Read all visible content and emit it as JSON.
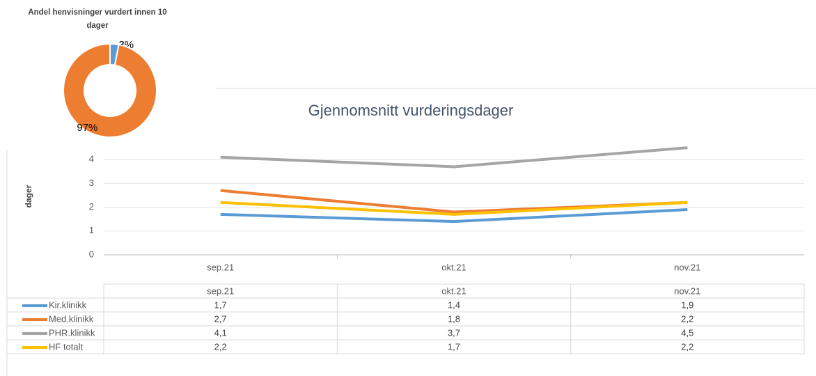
{
  "chart_data": [
    {
      "type": "pie",
      "title_lines": [
        "Andel henvisninger vurdert innen 10",
        "dager"
      ],
      "categories": [
        null,
        null
      ],
      "values": [
        3,
        97
      ],
      "value_labels": [
        "3%",
        "97%"
      ],
      "colors": [
        "#5b9bd5",
        "#ed7d31"
      ],
      "donut": true
    },
    {
      "type": "line",
      "title": "Gjennomsnitt vurderingsdager",
      "ylabel": "dager",
      "categories": [
        "sep.21",
        "okt.21",
        "nov.21"
      ],
      "series": [
        {
          "name": "Kir.klinikk",
          "color": "#5b9bd5",
          "values": [
            1.7,
            1.4,
            1.9
          ],
          "value_labels": [
            "1,7",
            "1,4",
            "1,9"
          ]
        },
        {
          "name": "Med.klinikk",
          "color": "#ed7d31",
          "values": [
            2.7,
            1.8,
            2.2
          ],
          "value_labels": [
            "2,7",
            "1,8",
            "2,2"
          ]
        },
        {
          "name": "PHR.klinikk",
          "color": "#a5a5a5",
          "values": [
            4.1,
            3.7,
            4.5
          ],
          "value_labels": [
            "4,1",
            "3,7",
            "4,5"
          ]
        },
        {
          "name": "HF totalt",
          "color": "#ffc000",
          "values": [
            2.2,
            1.7,
            2.2
          ],
          "value_labels": [
            "2,2",
            "1,7",
            "2,2"
          ]
        }
      ],
      "ylim": [
        0,
        5
      ],
      "yticks": [
        0,
        1,
        2,
        3,
        4
      ],
      "grid": true,
      "data_table": true
    }
  ]
}
